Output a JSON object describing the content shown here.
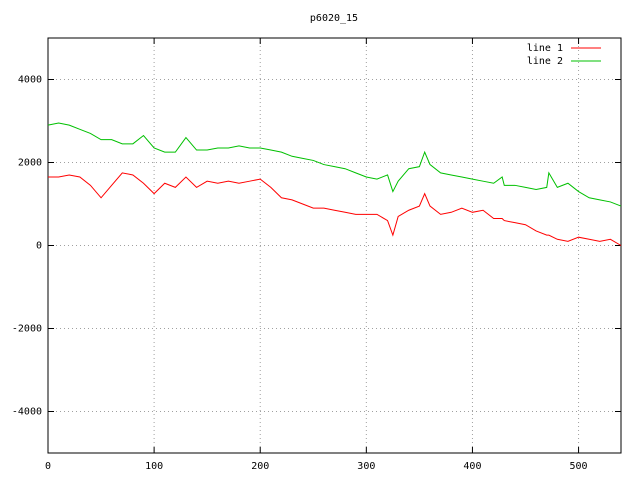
{
  "chart_data": {
    "type": "line",
    "title": "p6020_15",
    "x": [
      0,
      10,
      20,
      30,
      40,
      50,
      60,
      70,
      80,
      90,
      100,
      110,
      120,
      130,
      140,
      150,
      160,
      170,
      180,
      190,
      200,
      210,
      220,
      230,
      240,
      250,
      260,
      270,
      280,
      290,
      300,
      310,
      320,
      325,
      330,
      340,
      350,
      355,
      360,
      370,
      380,
      390,
      400,
      410,
      420,
      428,
      430,
      440,
      450,
      460,
      470,
      472,
      480,
      490,
      500,
      510,
      520,
      530,
      540
    ],
    "series": [
      {
        "name": "line 1",
        "color": "#ff0000",
        "values": [
          1650,
          1650,
          1700,
          1650,
          1450,
          1150,
          1450,
          1750,
          1700,
          1500,
          1250,
          1500,
          1400,
          1650,
          1400,
          1550,
          1500,
          1550,
          1500,
          1550,
          1600,
          1400,
          1150,
          1100,
          1000,
          900,
          900,
          850,
          800,
          750,
          750,
          750,
          600,
          250,
          700,
          850,
          950,
          1250,
          950,
          750,
          800,
          900,
          800,
          850,
          650,
          650,
          600,
          550,
          500,
          350,
          250,
          250,
          150,
          100,
          200,
          150,
          100,
          150,
          0
        ]
      },
      {
        "name": "line 2",
        "color": "#00c000",
        "values": [
          2900,
          2950,
          2900,
          2800,
          2700,
          2550,
          2550,
          2450,
          2450,
          2650,
          2350,
          2250,
          2250,
          2600,
          2300,
          2300,
          2350,
          2350,
          2400,
          2350,
          2350,
          2300,
          2250,
          2150,
          2100,
          2050,
          1950,
          1900,
          1850,
          1750,
          1650,
          1600,
          1700,
          1300,
          1550,
          1850,
          1900,
          2250,
          1950,
          1750,
          1700,
          1650,
          1600,
          1550,
          1500,
          1650,
          1450,
          1450,
          1400,
          1350,
          1400,
          1750,
          1400,
          1500,
          1300,
          1150,
          1100,
          1050,
          950
        ]
      }
    ],
    "xlim": [
      0,
      540
    ],
    "xticks": [
      0,
      100,
      200,
      300,
      400,
      500
    ],
    "ylim": [
      -5000,
      5000
    ],
    "yticks": [
      -4000,
      -2000,
      0,
      2000,
      4000
    ],
    "grid": true,
    "legend": "top-right"
  }
}
